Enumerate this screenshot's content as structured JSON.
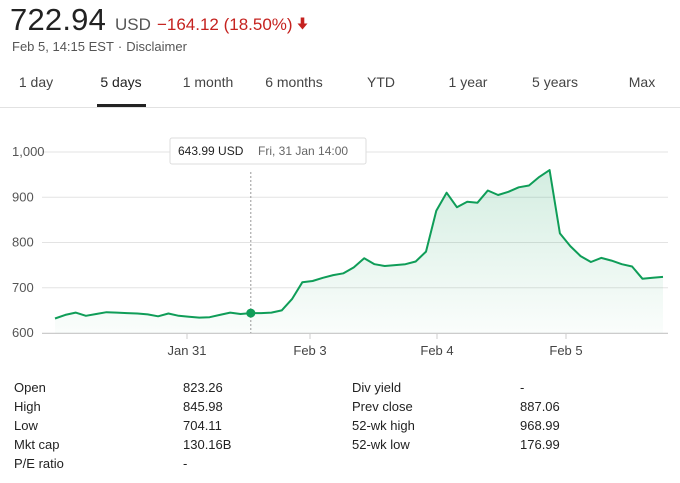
{
  "quote": {
    "price": "722.94",
    "currency": "USD",
    "change": "−164.12 (18.50%)",
    "change_color": "#c5221f",
    "timestamp": "Feb 5, 14:15 EST",
    "separator": "·",
    "disclaimer": "Disclaimer"
  },
  "tabs": [
    {
      "label": "1 day"
    },
    {
      "label": "5 days",
      "active": true
    },
    {
      "label": "1 month"
    },
    {
      "label": "6 months"
    },
    {
      "label": "YTD"
    },
    {
      "label": "1 year"
    },
    {
      "label": "5 years"
    },
    {
      "label": "Max"
    }
  ],
  "tooltip": {
    "price": "643.99 USD",
    "date": "Fri, 31 Jan 14:00"
  },
  "chart_data": {
    "type": "area",
    "line_color": "#0f9d58",
    "ylim": [
      600,
      1000
    ],
    "yticks": [
      600,
      700,
      800,
      900,
      1000
    ],
    "ytick_labels": [
      "600",
      "700",
      "800",
      "900",
      "1,000"
    ],
    "xtick_labels": [
      "Jan 31",
      "Feb 3",
      "Feb 4",
      "Feb 5"
    ],
    "xtick_positions": [
      10,
      20,
      30,
      40
    ],
    "x": [
      0,
      1,
      2,
      3,
      4,
      5,
      6,
      7,
      8,
      9,
      10,
      11,
      12,
      13,
      14,
      15,
      16,
      17,
      18,
      19,
      20,
      21,
      22,
      23,
      24,
      25,
      26,
      27,
      28,
      29,
      30,
      31,
      32,
      33,
      34,
      35,
      36,
      37,
      38,
      39,
      40,
      41,
      42,
      43,
      44,
      45,
      46,
      47,
      48,
      49
    ],
    "values": [
      632,
      640,
      645,
      638,
      642,
      646,
      645,
      644,
      643,
      641,
      637,
      643,
      638,
      636,
      634,
      635,
      640,
      645,
      642,
      643.99,
      644,
      645,
      650,
      675,
      712,
      715,
      722,
      728,
      732,
      745,
      765,
      752,
      748,
      750,
      752,
      758,
      780,
      870,
      910,
      878,
      890,
      888,
      915,
      905,
      912,
      922,
      926,
      945,
      960,
      820
    ],
    "series_tail": [
      792,
      770,
      757,
      766,
      760,
      752,
      747,
      720,
      722,
      724
    ],
    "highlight_index": 19
  },
  "stats": {
    "left": [
      {
        "label": "Open",
        "value": "823.26"
      },
      {
        "label": "High",
        "value": "845.98"
      },
      {
        "label": "Low",
        "value": "704.11"
      },
      {
        "label": "Mkt cap",
        "value": "130.16B"
      },
      {
        "label": "P/E ratio",
        "value": "-"
      }
    ],
    "right": [
      {
        "label": "Div yield",
        "value": "-"
      },
      {
        "label": "Prev close",
        "value": "887.06"
      },
      {
        "label": "52-wk high",
        "value": "968.99"
      },
      {
        "label": "52-wk low",
        "value": "176.99"
      }
    ]
  }
}
